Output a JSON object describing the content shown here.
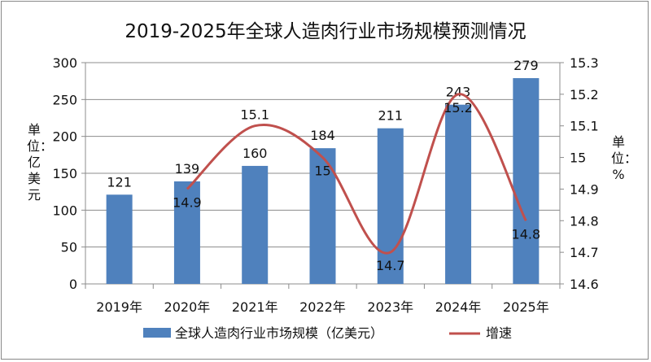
{
  "chart_data": {
    "type": "bar+line",
    "title": "2019-2025年全球人造肉行业市场规模预测情况",
    "categories": [
      "2019年",
      "2020年",
      "2021年",
      "2022年",
      "2023年",
      "2024年",
      "2025年"
    ],
    "series": [
      {
        "name": "全球人造肉行业市场规模（亿美元）",
        "type": "bar",
        "axis": "left",
        "values": [
          121,
          139,
          160,
          184,
          211,
          243,
          279
        ],
        "color": "#4f81bd"
      },
      {
        "name": "增速",
        "type": "line",
        "axis": "right",
        "smooth": true,
        "values": [
          null,
          14.9,
          15.1,
          15.0,
          14.7,
          15.2,
          14.8
        ],
        "labels": [
          "",
          "14.9",
          "15.1",
          "15",
          "14.7",
          "15.2",
          "14.8"
        ],
        "color": "#c0504d"
      }
    ],
    "ylabel": "单位：亿美元",
    "y2label": "单位：%",
    "ylim": [
      0,
      300
    ],
    "yticks": [
      "0",
      "50",
      "100",
      "150",
      "200",
      "250",
      "300"
    ],
    "y2lim": [
      14.6,
      15.3
    ],
    "y2ticks": [
      "14.6",
      "14.7",
      "14.8",
      "14.9",
      "15",
      "15.1",
      "15.2",
      "15.3"
    ],
    "grid": true,
    "legend": "bottom"
  }
}
